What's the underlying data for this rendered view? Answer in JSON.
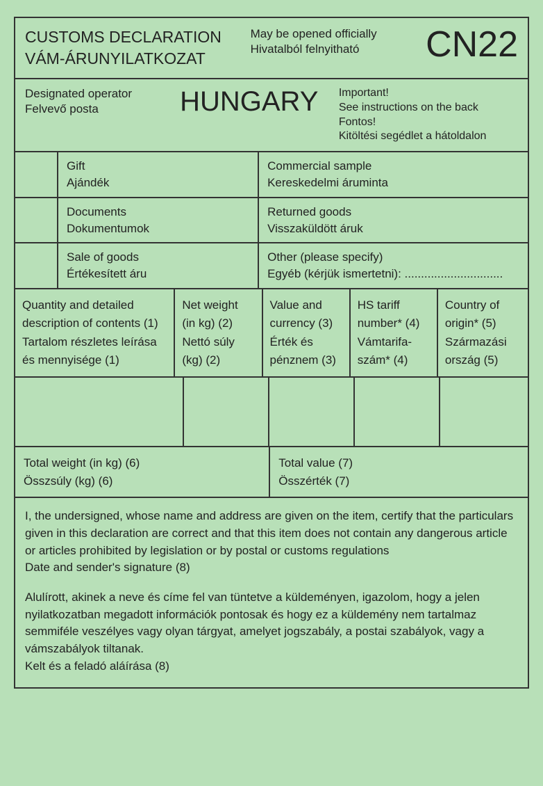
{
  "header": {
    "title_en": "CUSTOMS DECLARATION",
    "title_hu": "VÁM-ÁRUNYILATKOZAT",
    "sub_en": "May be opened officially",
    "sub_hu": "Hivatalból felnyitható",
    "code": "CN22"
  },
  "operator": {
    "label_en": "Designated operator",
    "label_hu": "Felvevő posta",
    "country": "HUNGARY",
    "important_en": "Important!",
    "instructions_en": "See instructions on the back",
    "important_hu": "Fontos!",
    "instructions_hu": "Kitöltési segédlet a hátoldalon"
  },
  "categories": [
    {
      "en": "Gift",
      "hu": "Ajándék",
      "en2": "Commercial sample",
      "hu2": "Kereskedelmi áruminta"
    },
    {
      "en": "Documents",
      "hu": "Dokumentumok",
      "en2": "Returned goods",
      "hu2": "Visszaküldött áruk"
    },
    {
      "en": "Sale of goods",
      "hu": "Értékesített áru",
      "en2": "Other (please specify)",
      "hu2": "Egyéb (kérjük ismertetni): .............................."
    }
  ],
  "columns": {
    "c1_en": "Quantity and detailed",
    "c1_en2": "description of contents (1)",
    "c1_hu": "Tartalom részletes leírása",
    "c1_hu2": "és mennyisége (1)",
    "c2_en": "Net weight",
    "c2_en2": "(in kg) (2)",
    "c2_hu": "Nettó súly",
    "c2_hu2": "(kg) (2)",
    "c3_en": "Value and",
    "c3_en2": "currency (3)",
    "c3_hu": "Érték és",
    "c3_hu2": "pénznem (3)",
    "c4_en": "HS tariff",
    "c4_en2": "number* (4)",
    "c4_hu": "Vámtarifa-",
    "c4_hu2": "szám* (4)",
    "c5_en": "Country of",
    "c5_en2": "origin* (5)",
    "c5_hu": "Származási",
    "c5_hu2": "ország (5)"
  },
  "totals": {
    "weight_en": "Total weight (in kg) (6)",
    "weight_hu": "Összsúly (kg) (6)",
    "value_en": "Total value (7)",
    "value_hu": "Összérték (7)"
  },
  "declaration": {
    "en": "I, the undersigned, whose name and address are given on the item, certify that the particulars given in this declaration are correct and that this item does not contain any dangerous article or articles prohibited by legislation or by postal or customs regulations",
    "en_sig": "Date and sender's signature (8)",
    "hu": "Alulírott, akinek a neve és címe fel van tüntetve a küldeményen, igazolom, hogy a jelen nyilatkozatban megadott információk pontosak és hogy ez a küldemény nem tartalmaz semmiféle veszélyes vagy olyan tárgyat, amelyet jogszabály, a postai szabályok, vagy a vámszabályok tiltanak.",
    "hu_sig": "Kelt és a feladó aláírása (8)"
  }
}
